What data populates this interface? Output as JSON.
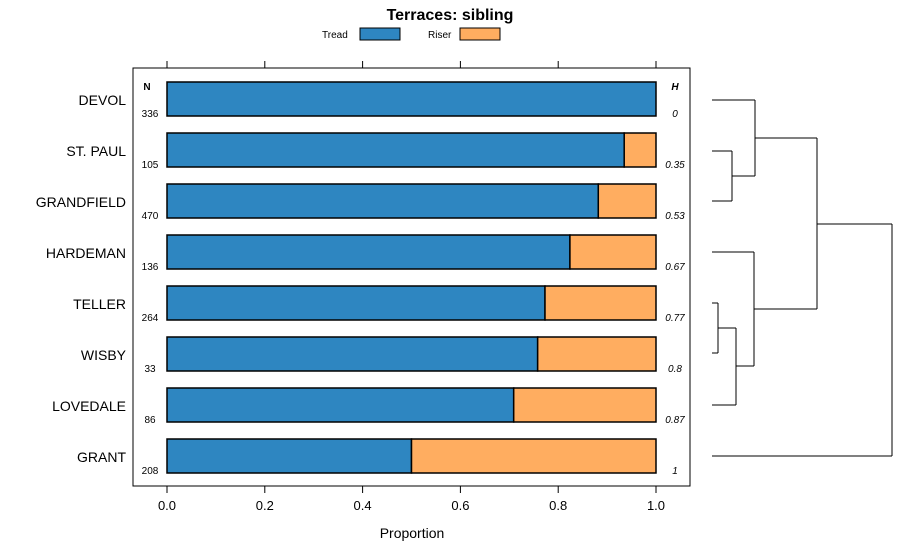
{
  "chart_data": {
    "type": "bar",
    "orientation": "horizontal",
    "stacked": true,
    "title": "Terraces: sibling",
    "xlabel": "Proportion",
    "xlim": [
      0,
      1
    ],
    "xticks": [
      "0.0",
      "0.2",
      "0.4",
      "0.6",
      "0.8",
      "1.0"
    ],
    "n_header": "N",
    "h_header": "H",
    "categories": [
      "DEVOL",
      "ST. PAUL",
      "GRANDFIELD",
      "HARDEMAN",
      "TELLER",
      "WISBY",
      "LOVEDALE",
      "GRANT"
    ],
    "n_values": [
      "336",
      "105",
      "470",
      "136",
      "264",
      "33",
      "86",
      "208"
    ],
    "h_values": [
      "0",
      "0.35",
      "0.53",
      "0.67",
      "0.77",
      "0.8",
      "0.87",
      "1"
    ],
    "series": [
      {
        "name": "Tread",
        "color": "#2E86C1",
        "values": [
          1.0,
          0.935,
          0.882,
          0.824,
          0.773,
          0.758,
          0.709,
          0.5
        ]
      },
      {
        "name": "Riser",
        "color": "#FFAD60",
        "values": [
          0.0,
          0.065,
          0.118,
          0.176,
          0.227,
          0.242,
          0.291,
          0.5
        ]
      }
    ],
    "legend_position": "top",
    "dendrogram": {
      "description": "hierarchical clustering of rows",
      "merges": [
        [
          "ST. PAUL",
          "GRANDFIELD"
        ],
        [
          "DEVOL",
          "ST. PAUL+GRANDFIELD"
        ],
        [
          "TELLER",
          "WISBY"
        ],
        [
          "TELLER+WISBY",
          "LOVEDALE"
        ],
        [
          "HARDEMAN",
          "TELLER+WISBY+LOVEDALE"
        ],
        [
          "DEVOL+ST. PAUL+GRANDFIELD",
          "HARDEMAN+TELLER+WISBY+LOVEDALE"
        ],
        [
          "all-but-GRANT",
          "GRANT"
        ]
      ]
    }
  }
}
